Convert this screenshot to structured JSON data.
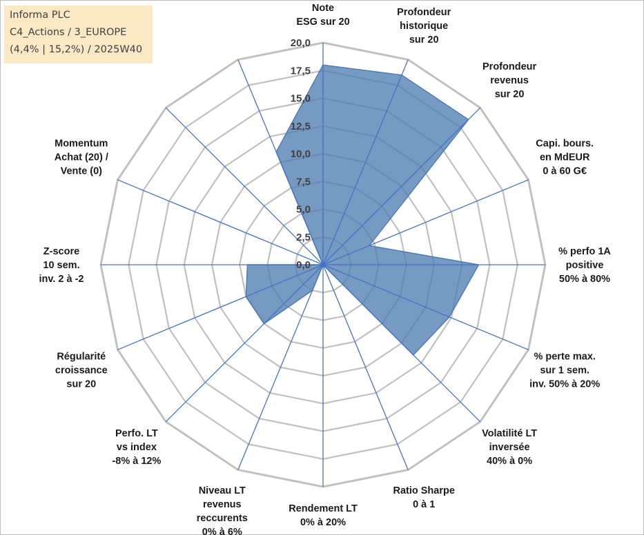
{
  "header": {
    "line1": "Informa PLC",
    "line2": "C4_Actions / 3_EUROPE",
    "line3": "(4,4% | 15,2%) / 2025W40"
  },
  "chart_data": {
    "type": "radar",
    "rmin": 0,
    "rmax": 20,
    "ticks": [
      "0,0",
      "2,5",
      "5,0",
      "7,5",
      "10,0",
      "12,5",
      "15,0",
      "17,5",
      "20,0"
    ],
    "tick_values": [
      0,
      2.5,
      5,
      7.5,
      10,
      12.5,
      15,
      17.5,
      20
    ],
    "series": [
      {
        "name": "Informa PLC",
        "color": "#4f7db1",
        "values": [
          18,
          18.5,
          18.5,
          4.5,
          14,
          12.3,
          11.5,
          0,
          0,
          2.5,
          7.5,
          7.5,
          6.8,
          0,
          0,
          11
        ]
      }
    ],
    "categories": [
      [
        "Note",
        "ESG sur 20"
      ],
      [
        "Profondeur",
        "historique",
        "sur 20"
      ],
      [
        "Profondeur",
        "revenus",
        "sur 20"
      ],
      [
        "Capi. bours.",
        "en MdEUR",
        "0 à 60 G€"
      ],
      [
        "% perfo 1A",
        "positive",
        "50% à 80%"
      ],
      [
        "% perte max.",
        "sur 1 sem.",
        "inv. 50% à 20%"
      ],
      [
        "Volatilité LT",
        "inversée",
        "40% à 0%"
      ],
      [
        "Ratio Sharpe",
        "0 à 1"
      ],
      [
        "Rendement LT",
        "0% à 20%"
      ],
      [
        "Niveau LT",
        "revenus",
        "reccurents",
        "0% à 6%"
      ],
      [
        "Perfo. LT",
        "vs index",
        "-8% à 12%"
      ],
      [
        "Régularité",
        "croissance",
        "sur 20"
      ],
      [
        "Z-score",
        "10 sem.",
        "inv. 2 à -2"
      ],
      [
        "Momentum",
        "Achat (20) /",
        "Vente (0)"
      ],
      [],
      []
    ],
    "grid_color": "#c0c0c0",
    "spoke_color": "#4472c4"
  }
}
